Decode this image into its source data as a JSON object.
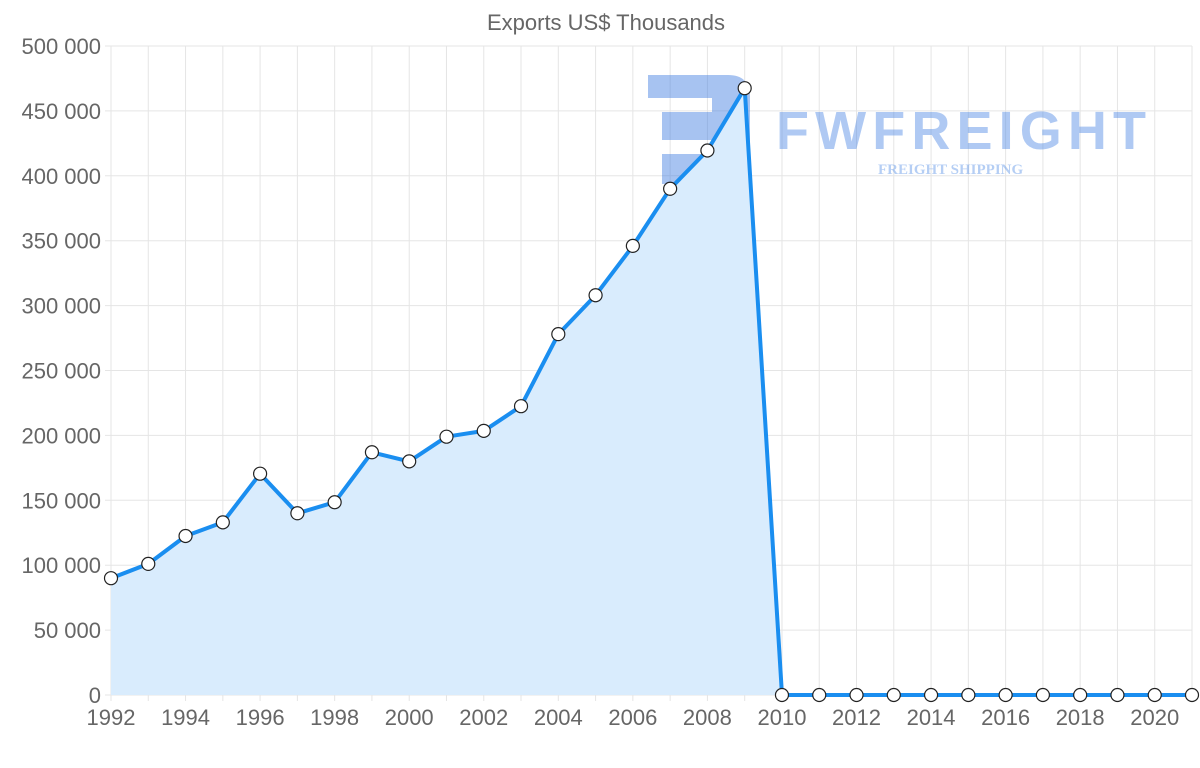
{
  "chart_data": {
    "type": "line",
    "title": "Exports US$ Thousands",
    "xlabel": "",
    "ylabel": "",
    "x": [
      1992,
      1993,
      1994,
      1995,
      1996,
      1997,
      1998,
      1999,
      2000,
      2001,
      2002,
      2003,
      2004,
      2005,
      2006,
      2007,
      2008,
      2009,
      2010,
      2011,
      2012,
      2013,
      2014,
      2015,
      2016,
      2017,
      2018,
      2019,
      2020,
      2021
    ],
    "series": [
      {
        "name": "Exports",
        "values": [
          90000,
          101000,
          122500,
          133000,
          170500,
          140000,
          148500,
          187000,
          180000,
          199000,
          203500,
          222500,
          278000,
          308000,
          346000,
          390000,
          419500,
          467500,
          0,
          0,
          0,
          0,
          0,
          0,
          0,
          0,
          0,
          0,
          0,
          0
        ],
        "color": "#1a8ef0",
        "fill": "#d9ecfd"
      }
    ],
    "ylim": [
      0,
      500000
    ],
    "yticks": [
      0,
      50000,
      100000,
      150000,
      200000,
      250000,
      300000,
      350000,
      400000,
      450000,
      500000
    ],
    "ytick_labels": [
      "0",
      "50 000",
      "100 000",
      "150 000",
      "200 000",
      "250 000",
      "300 000",
      "350 000",
      "400 000",
      "450 000",
      "500 000"
    ],
    "xtick_labels": [
      "1992",
      "1994",
      "1996",
      "1998",
      "2000",
      "2002",
      "2004",
      "2006",
      "2008",
      "2010",
      "2012",
      "2014",
      "2016",
      "2018",
      "2020"
    ],
    "grid": true,
    "legend": "none"
  },
  "watermark": {
    "brand": "FWFREIGHT",
    "tagline": "FREIGHT SHIPPING"
  }
}
